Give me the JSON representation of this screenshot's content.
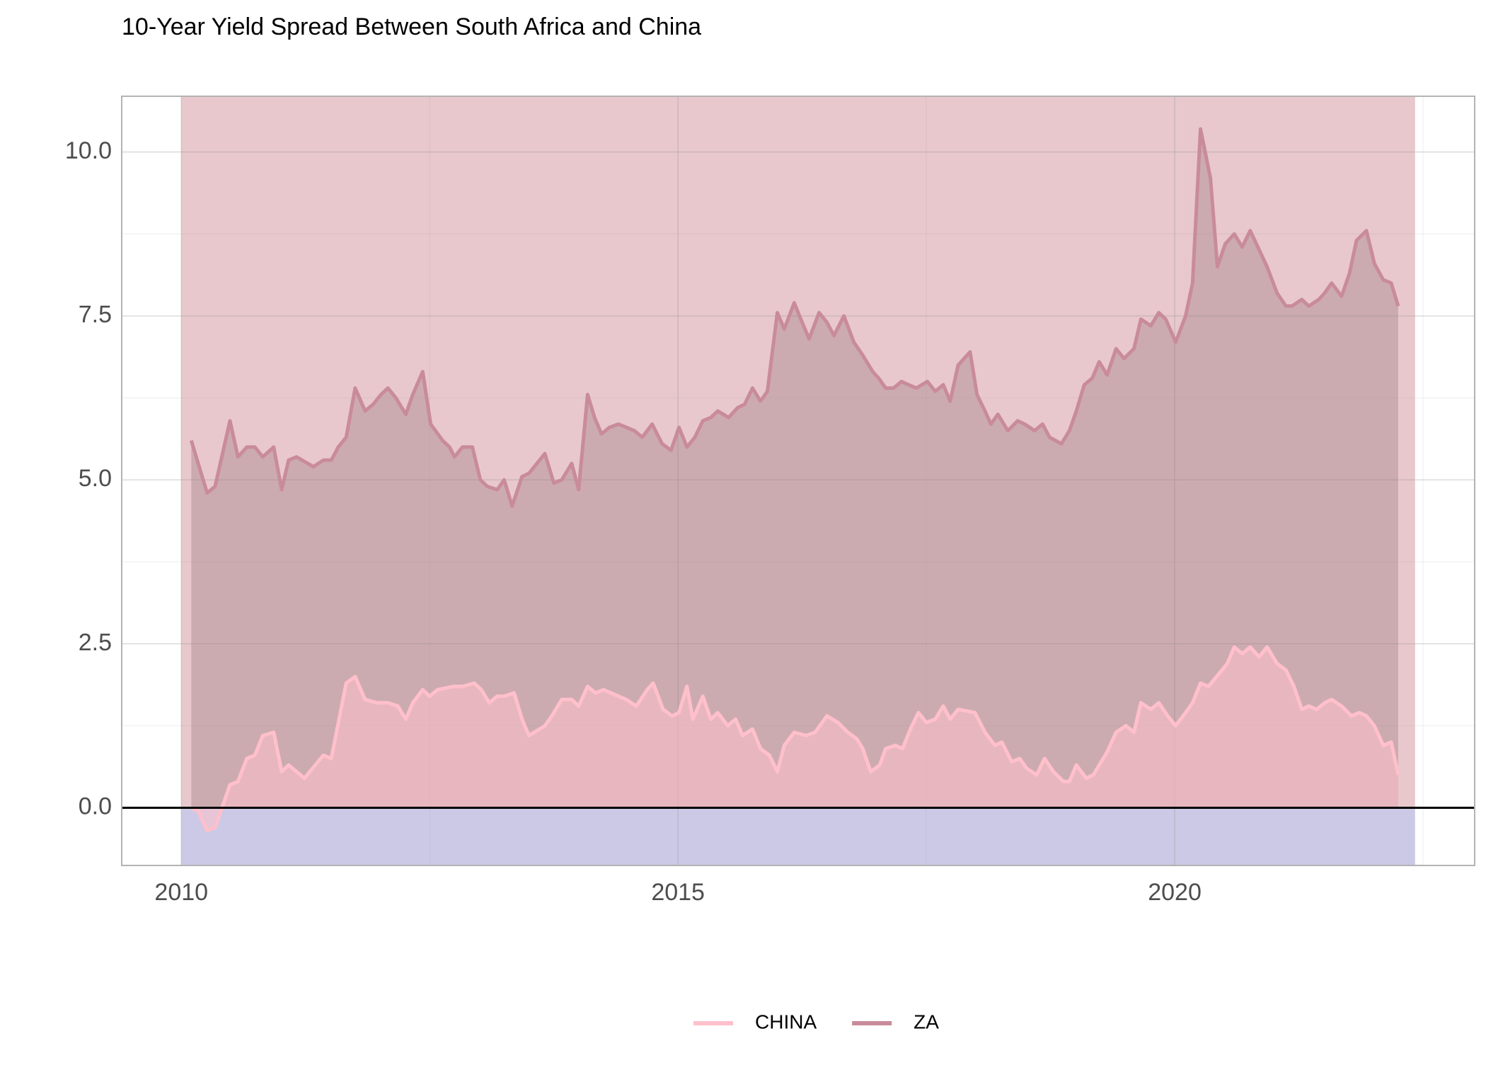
{
  "chart_data": {
    "type": "area",
    "title": "10-Year Yield Spread Between South Africa and China",
    "xlim": [
      2009.4,
      2023.02
    ],
    "xticks": [
      2010,
      2015,
      2020
    ],
    "xminor": [
      2012.5,
      2017.5,
      2022.5
    ],
    "ylim": [
      -0.88,
      10.85
    ],
    "yticks": [
      {
        "value": 0,
        "label": "0.0"
      },
      {
        "value": 2.5,
        "label": "2.5"
      },
      {
        "value": 5,
        "label": "5.0"
      },
      {
        "value": 7.5,
        "label": "7.5"
      },
      {
        "value": 10,
        "label": "10.0"
      }
    ],
    "yminor": [
      1.25,
      3.75,
      6.25,
      8.75
    ],
    "grid": true,
    "legend": "bottom",
    "shaded_period": [
      2010,
      2022.42
    ],
    "shade_color_positive": "#e8c8cc",
    "shade_color_negative": "#ccc9e6",
    "hline": 0,
    "series": [
      {
        "name": "CHINA",
        "color": "#ffc0cb",
        "x": [
          2010.1,
          2010.17,
          2010.26,
          2010.34,
          2010.41,
          2010.49,
          2010.57,
          2010.66,
          2010.74,
          2010.82,
          2010.93,
          2011.01,
          2011.08,
          2011.24,
          2011.43,
          2011.51,
          2011.66,
          2011.75,
          2011.85,
          2011.97,
          2012.08,
          2012.18,
          2012.26,
          2012.33,
          2012.43,
          2012.5,
          2012.58,
          2012.74,
          2012.83,
          2012.95,
          2013.02,
          2013.1,
          2013.18,
          2013.25,
          2013.35,
          2013.43,
          2013.5,
          2013.66,
          2013.73,
          2013.83,
          2013.93,
          2014.0,
          2014.09,
          2014.17,
          2014.25,
          2014.48,
          2014.58,
          2014.69,
          2014.75,
          2014.85,
          2014.94,
          2015.01,
          2015.09,
          2015.15,
          2015.25,
          2015.33,
          2015.4,
          2015.5,
          2015.58,
          2015.65,
          2015.75,
          2015.83,
          2015.92,
          2016.0,
          2016.07,
          2016.17,
          2016.29,
          2016.38,
          2016.5,
          2016.61,
          2016.71,
          2016.8,
          2016.86,
          2016.94,
          2017.03,
          2017.09,
          2017.19,
          2017.26,
          2017.34,
          2017.42,
          2017.5,
          2017.59,
          2017.67,
          2017.74,
          2017.82,
          2017.99,
          2018.09,
          2018.19,
          2018.26,
          2018.36,
          2018.44,
          2018.51,
          2018.61,
          2018.69,
          2018.78,
          2018.88,
          2018.94,
          2019.01,
          2019.11,
          2019.18,
          2019.32,
          2019.41,
          2019.51,
          2019.59,
          2019.66,
          2019.76,
          2019.84,
          2019.93,
          2020.01,
          2020.11,
          2020.18,
          2020.26,
          2020.34,
          2020.45,
          2020.53,
          2020.6,
          2020.68,
          2020.76,
          2020.85,
          2020.93,
          2021.03,
          2021.12,
          2021.2,
          2021.28,
          2021.35,
          2021.43,
          2021.51,
          2021.58,
          2021.68,
          2021.78,
          2021.86,
          2021.93,
          2022.01,
          2022.1,
          2022.18,
          2022.25
        ],
        "values": [
          0.0,
          -0.05,
          -0.35,
          -0.3,
          0.0,
          0.35,
          0.4,
          0.75,
          0.8,
          1.1,
          1.15,
          0.55,
          0.65,
          0.45,
          0.8,
          0.75,
          1.9,
          2.0,
          1.65,
          1.6,
          1.6,
          1.55,
          1.35,
          1.6,
          1.8,
          1.7,
          1.8,
          1.85,
          1.85,
          1.9,
          1.8,
          1.6,
          1.7,
          1.7,
          1.75,
          1.35,
          1.1,
          1.25,
          1.4,
          1.65,
          1.65,
          1.55,
          1.85,
          1.75,
          1.8,
          1.65,
          1.55,
          1.8,
          1.9,
          1.5,
          1.4,
          1.45,
          1.85,
          1.35,
          1.7,
          1.35,
          1.45,
          1.25,
          1.35,
          1.1,
          1.2,
          0.9,
          0.8,
          0.55,
          0.95,
          1.15,
          1.1,
          1.15,
          1.4,
          1.3,
          1.15,
          1.05,
          0.9,
          0.55,
          0.65,
          0.9,
          0.95,
          0.9,
          1.2,
          1.45,
          1.3,
          1.35,
          1.55,
          1.35,
          1.5,
          1.45,
          1.15,
          0.95,
          1.0,
          0.7,
          0.75,
          0.6,
          0.5,
          0.75,
          0.55,
          0.4,
          0.4,
          0.65,
          0.45,
          0.5,
          0.85,
          1.15,
          1.25,
          1.15,
          1.6,
          1.5,
          1.6,
          1.4,
          1.25,
          1.45,
          1.6,
          1.9,
          1.85,
          2.05,
          2.2,
          2.45,
          2.35,
          2.45,
          2.3,
          2.45,
          2.2,
          2.1,
          1.85,
          1.5,
          1.55,
          1.5,
          1.6,
          1.65,
          1.55,
          1.4,
          1.45,
          1.4,
          1.25,
          0.95,
          1.0,
          0.5
        ]
      },
      {
        "name": "ZA",
        "color": "#c98b9a",
        "x": [
          2010.1,
          2010.26,
          2010.34,
          2010.49,
          2010.57,
          2010.66,
          2010.74,
          2010.82,
          2010.93,
          2011.01,
          2011.08,
          2011.16,
          2011.33,
          2011.43,
          2011.51,
          2011.58,
          2011.66,
          2011.75,
          2011.85,
          2011.93,
          2012.01,
          2012.08,
          2012.16,
          2012.26,
          2012.33,
          2012.43,
          2012.51,
          2012.63,
          2012.7,
          2012.75,
          2012.83,
          2012.93,
          2013.01,
          2013.08,
          2013.18,
          2013.25,
          2013.33,
          2013.43,
          2013.5,
          2013.66,
          2013.75,
          2013.83,
          2013.93,
          2014.0,
          2014.09,
          2014.16,
          2014.23,
          2014.31,
          2014.4,
          2014.56,
          2014.64,
          2014.74,
          2014.84,
          2014.93,
          2015.01,
          2015.09,
          2015.17,
          2015.25,
          2015.33,
          2015.4,
          2015.51,
          2015.6,
          2015.67,
          2015.75,
          2015.83,
          2015.9,
          2016.0,
          2016.07,
          2016.17,
          2016.25,
          2016.32,
          2016.42,
          2016.5,
          2016.57,
          2016.67,
          2016.77,
          2016.86,
          2016.96,
          2017.02,
          2017.09,
          2017.17,
          2017.25,
          2017.32,
          2017.4,
          2017.51,
          2017.59,
          2017.67,
          2017.74,
          2017.82,
          2017.94,
          2018.01,
          2018.09,
          2018.15,
          2018.22,
          2018.32,
          2018.42,
          2018.49,
          2018.59,
          2018.67,
          2018.74,
          2018.86,
          2018.94,
          2019.01,
          2019.09,
          2019.17,
          2019.24,
          2019.32,
          2019.41,
          2019.49,
          2019.59,
          2019.66,
          2019.76,
          2019.84,
          2019.91,
          2020.01,
          2020.11,
          2020.18,
          2020.26,
          2020.36,
          2020.43,
          2020.51,
          2020.6,
          2020.68,
          2020.76,
          2020.93,
          2021.03,
          2021.12,
          2021.18,
          2021.28,
          2021.35,
          2021.45,
          2021.51,
          2021.58,
          2021.68,
          2021.76,
          2021.83,
          2021.93,
          2022.01,
          2022.1,
          2022.18,
          2022.25
        ],
        "values": [
          5.6,
          4.8,
          4.9,
          5.9,
          5.35,
          5.5,
          5.5,
          5.35,
          5.5,
          4.85,
          5.3,
          5.35,
          5.2,
          5.3,
          5.3,
          5.5,
          5.65,
          6.4,
          6.05,
          6.15,
          6.3,
          6.4,
          6.25,
          6.0,
          6.3,
          6.65,
          5.85,
          5.6,
          5.5,
          5.35,
          5.5,
          5.5,
          5.0,
          4.9,
          4.85,
          5.0,
          4.6,
          5.05,
          5.1,
          5.4,
          4.95,
          5.0,
          5.25,
          4.85,
          6.3,
          5.95,
          5.7,
          5.8,
          5.85,
          5.75,
          5.65,
          5.85,
          5.55,
          5.45,
          5.8,
          5.5,
          5.65,
          5.9,
          5.95,
          6.05,
          5.95,
          6.1,
          6.15,
          6.4,
          6.2,
          6.35,
          7.55,
          7.3,
          7.7,
          7.4,
          7.15,
          7.55,
          7.4,
          7.2,
          7.5,
          7.1,
          6.9,
          6.65,
          6.55,
          6.4,
          6.4,
          6.5,
          6.45,
          6.4,
          6.5,
          6.35,
          6.45,
          6.2,
          6.75,
          6.95,
          6.3,
          6.05,
          5.85,
          6.0,
          5.75,
          5.9,
          5.85,
          5.75,
          5.85,
          5.65,
          5.55,
          5.75,
          6.05,
          6.45,
          6.55,
          6.8,
          6.6,
          7.0,
          6.85,
          7.0,
          7.45,
          7.35,
          7.55,
          7.45,
          7.1,
          7.5,
          8.0,
          10.35,
          9.6,
          8.25,
          8.6,
          8.75,
          8.55,
          8.8,
          8.25,
          7.85,
          7.65,
          7.65,
          7.75,
          7.65,
          7.75,
          7.85,
          8.0,
          7.8,
          8.15,
          8.65,
          8.8,
          8.3,
          8.05,
          8.0,
          7.65
        ]
      }
    ]
  }
}
